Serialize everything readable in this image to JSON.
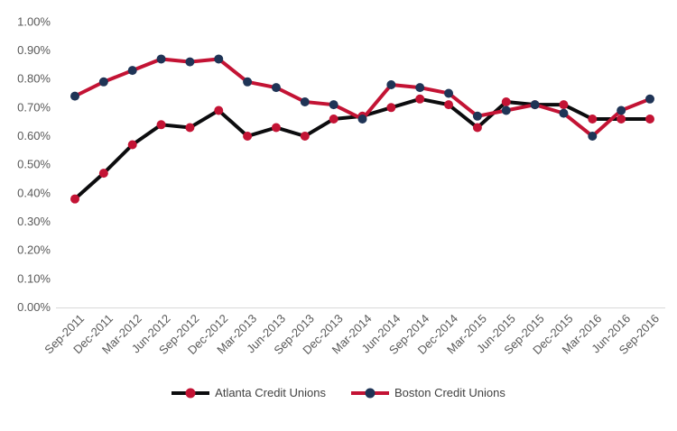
{
  "chart_data": {
    "type": "line",
    "title": "",
    "xlabel": "",
    "ylabel": "",
    "categories": [
      "Sep-2011",
      "Dec-2011",
      "Mar-2012",
      "Jun-2012",
      "Sep-2012",
      "Dec-2012",
      "Mar-2013",
      "Jun-2013",
      "Sep-2013",
      "Dec-2013",
      "Mar-2014",
      "Jun-2014",
      "Sep-2014",
      "Dec-2014",
      "Mar-2015",
      "Jun-2015",
      "Sep-2015",
      "Dec-2015",
      "Mar-2016",
      "Jun-2016",
      "Sep-2016"
    ],
    "series": [
      {
        "name": "Atlanta Credit Unions",
        "values": [
          0.38,
          0.47,
          0.57,
          0.64,
          0.63,
          0.69,
          0.6,
          0.63,
          0.6,
          0.66,
          0.67,
          0.7,
          0.73,
          0.71,
          0.63,
          0.72,
          0.71,
          0.71,
          0.66,
          0.66,
          0.66
        ],
        "line_color": "#0c0c0e",
        "marker_color": "#c31334"
      },
      {
        "name": "Boston Credit Unions",
        "values": [
          0.74,
          0.79,
          0.83,
          0.87,
          0.86,
          0.87,
          0.79,
          0.77,
          0.72,
          0.71,
          0.66,
          0.78,
          0.77,
          0.75,
          0.67,
          0.69,
          0.71,
          0.68,
          0.6,
          0.69,
          0.73
        ],
        "line_color": "#c31334",
        "marker_color": "#1f3456"
      }
    ],
    "ylim": [
      0,
      1.0
    ],
    "y_tick_step": 0.1,
    "y_ticks": [
      "0.00%",
      "0.10%",
      "0.20%",
      "0.30%",
      "0.40%",
      "0.50%",
      "0.60%",
      "0.70%",
      "0.80%",
      "0.90%",
      "1.00%"
    ],
    "unit": "percent",
    "grid": false,
    "legend_position": "bottom",
    "axis_line_color": "#d9d9d9",
    "tick_label_color": "#595959"
  }
}
